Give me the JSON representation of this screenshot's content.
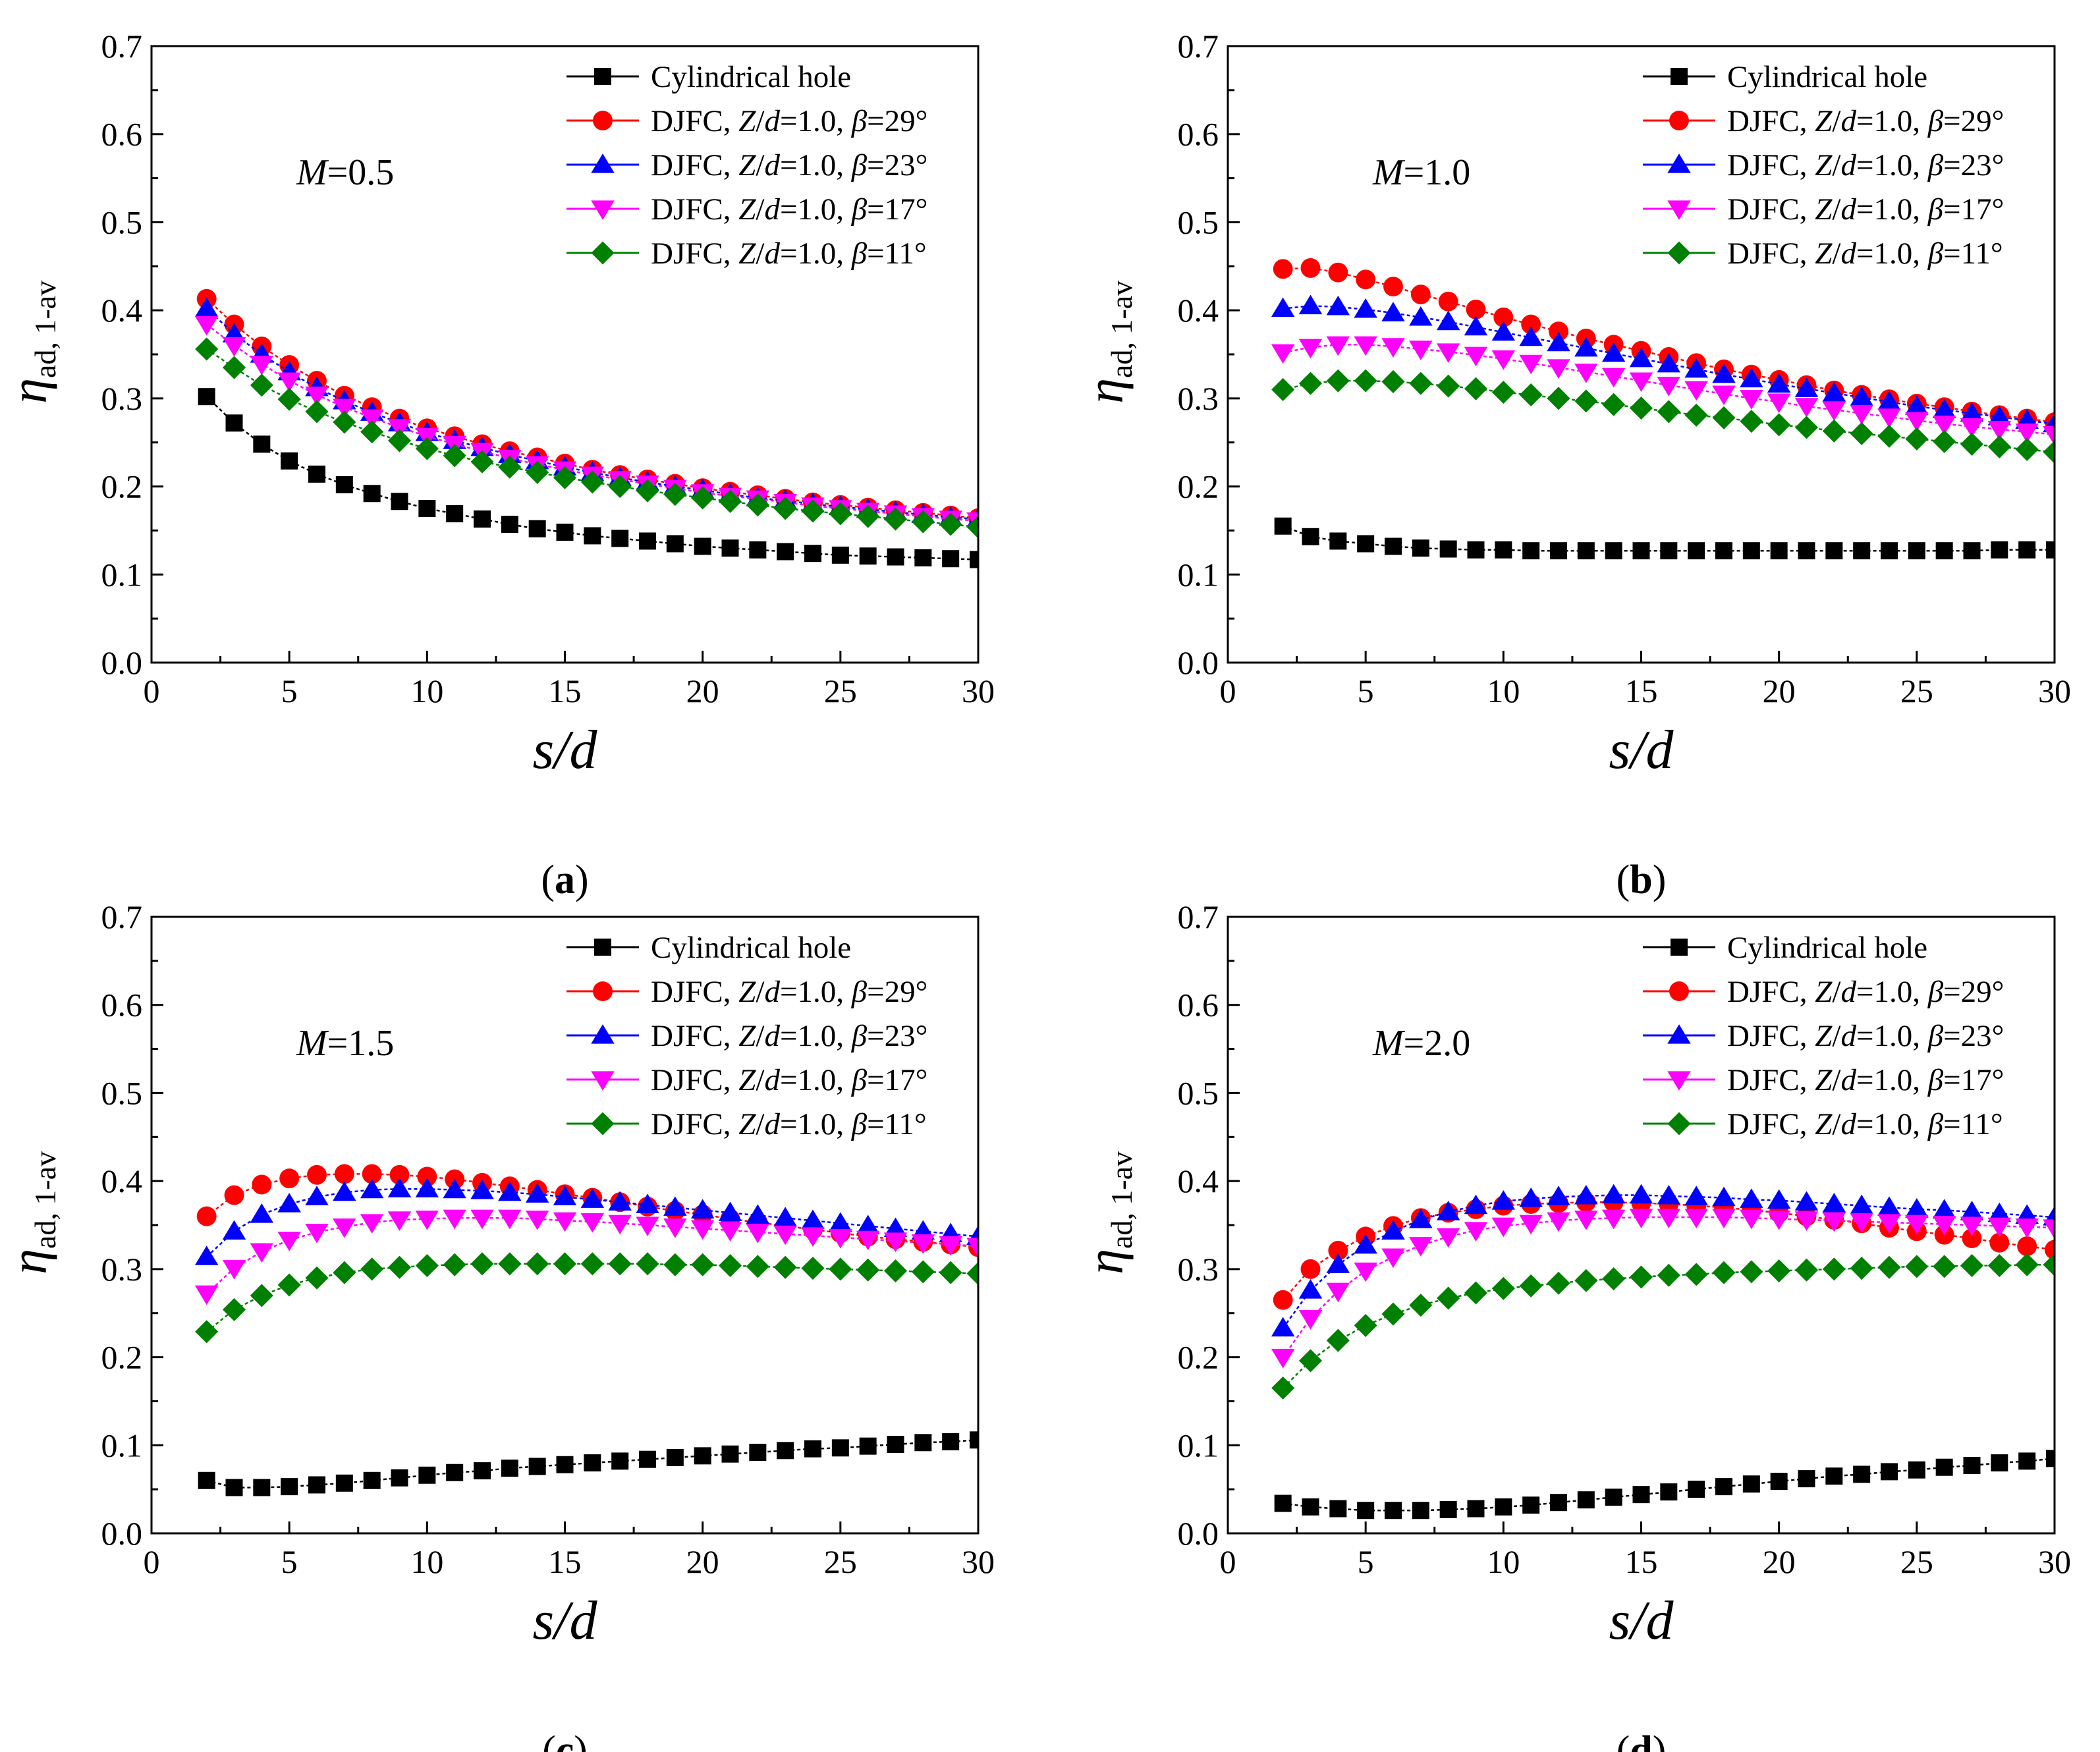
{
  "figure": {
    "legend_labels": [
      {
        "plain": "Cylindrical hole"
      },
      {
        "pre": "DJFC, ",
        "z": "Z",
        "slash": "/",
        "d": "d",
        "eq": "=1.0, ",
        "beta": "β",
        "val": "=29°"
      },
      {
        "pre": "DJFC, ",
        "z": "Z",
        "slash": "/",
        "d": "d",
        "eq": "=1.0, ",
        "beta": "β",
        "val": "=23°"
      },
      {
        "pre": "DJFC, ",
        "z": "Z",
        "slash": "/",
        "d": "d",
        "eq": "=1.0, ",
        "beta": "β",
        "val": "=17°"
      },
      {
        "pre": "DJFC, ",
        "z": "Z",
        "slash": "/",
        "d": "d",
        "eq": "=1.0, ",
        "beta": "β",
        "val": "=11°"
      }
    ],
    "ylabel": {
      "main": "η",
      "sub": "ad, 1-av"
    },
    "xlabel": "s/d",
    "x_ticks": [
      "0",
      "5",
      "10",
      "15",
      "20",
      "25",
      "30"
    ],
    "y_ticks": [
      "0.0",
      "0.1",
      "0.2",
      "0.3",
      "0.4",
      "0.5",
      "0.6",
      "0.7"
    ]
  },
  "colors": {
    "cylindrical": "#000000",
    "beta29": "#ff0000",
    "beta23": "#0000ff",
    "beta17": "#ff00ff",
    "beta11": "#008000",
    "axis": "#000000",
    "background": "#ffffff"
  },
  "chart_data": [
    {
      "type": "line",
      "panel_caption": "(a)",
      "caption_letter": "a",
      "annotation": {
        "var": "M",
        "value": "=0.5"
      },
      "xlim": [
        0,
        30
      ],
      "ylim": [
        0,
        0.7
      ],
      "xlabel": "s/d",
      "ylabel": "ηad, 1-av",
      "x": [
        2,
        3,
        4,
        5,
        6,
        7,
        8,
        9,
        10,
        11,
        12,
        13,
        14,
        15,
        16,
        17,
        18,
        19,
        20,
        21,
        22,
        23,
        24,
        25,
        26,
        27,
        28,
        29,
        30
      ],
      "series": [
        {
          "name": "Cylindrical hole",
          "marker": "square",
          "values": [
            0.302,
            0.272,
            0.248,
            0.229,
            0.214,
            0.202,
            0.192,
            0.183,
            0.175,
            0.169,
            0.163,
            0.157,
            0.152,
            0.148,
            0.144,
            0.141,
            0.138,
            0.135,
            0.132,
            0.13,
            0.128,
            0.126,
            0.124,
            0.122,
            0.121,
            0.12,
            0.119,
            0.118,
            0.117
          ]
        },
        {
          "name": "DJFC, Z/d=1.0, β=29°",
          "marker": "circle",
          "values": [
            0.413,
            0.384,
            0.359,
            0.338,
            0.32,
            0.303,
            0.29,
            0.277,
            0.266,
            0.257,
            0.248,
            0.24,
            0.233,
            0.226,
            0.219,
            0.213,
            0.208,
            0.203,
            0.198,
            0.194,
            0.19,
            0.186,
            0.182,
            0.179,
            0.176,
            0.173,
            0.17,
            0.167,
            0.164
          ]
        },
        {
          "name": "DJFC, Z/d=1.0, β=23°",
          "marker": "triangle-up",
          "values": [
            0.402,
            0.373,
            0.35,
            0.33,
            0.312,
            0.297,
            0.284,
            0.272,
            0.261,
            0.252,
            0.244,
            0.236,
            0.229,
            0.222,
            0.216,
            0.21,
            0.205,
            0.2,
            0.196,
            0.191,
            0.187,
            0.184,
            0.18,
            0.177,
            0.174,
            0.171,
            0.168,
            0.165,
            0.163
          ]
        },
        {
          "name": "DJFC, Z/d=1.0, β=17°",
          "marker": "triangle-down",
          "values": [
            0.384,
            0.36,
            0.339,
            0.32,
            0.304,
            0.29,
            0.278,
            0.267,
            0.257,
            0.248,
            0.24,
            0.232,
            0.225,
            0.219,
            0.213,
            0.208,
            0.203,
            0.198,
            0.193,
            0.189,
            0.186,
            0.182,
            0.178,
            0.175,
            0.172,
            0.169,
            0.166,
            0.163,
            0.161
          ]
        },
        {
          "name": "DJFC, Z/d=1.0, β=11°",
          "marker": "diamond",
          "values": [
            0.356,
            0.335,
            0.315,
            0.299,
            0.285,
            0.273,
            0.262,
            0.252,
            0.243,
            0.235,
            0.228,
            0.222,
            0.216,
            0.21,
            0.205,
            0.2,
            0.195,
            0.191,
            0.187,
            0.183,
            0.179,
            0.175,
            0.172,
            0.169,
            0.166,
            0.163,
            0.16,
            0.157,
            0.154
          ]
        }
      ]
    },
    {
      "type": "line",
      "panel_caption": "(b)",
      "caption_letter": "b",
      "annotation": {
        "var": "M",
        "value": "=1.0"
      },
      "xlim": [
        0,
        30
      ],
      "ylim": [
        0,
        0.7
      ],
      "xlabel": "s/d",
      "ylabel": "ηad, 1-av",
      "x": [
        2,
        3,
        4,
        5,
        6,
        7,
        8,
        9,
        10,
        11,
        12,
        13,
        14,
        15,
        16,
        17,
        18,
        19,
        20,
        21,
        22,
        23,
        24,
        25,
        26,
        27,
        28,
        29,
        30
      ],
      "series": [
        {
          "name": "Cylindrical hole",
          "marker": "square",
          "values": [
            0.155,
            0.143,
            0.138,
            0.135,
            0.132,
            0.13,
            0.129,
            0.128,
            0.128,
            0.127,
            0.127,
            0.127,
            0.127,
            0.127,
            0.127,
            0.127,
            0.127,
            0.127,
            0.127,
            0.127,
            0.127,
            0.127,
            0.127,
            0.127,
            0.127,
            0.127,
            0.128,
            0.128,
            0.128
          ]
        },
        {
          "name": "DJFC, Z/d=1.0, β=29°",
          "marker": "circle",
          "values": [
            0.447,
            0.448,
            0.443,
            0.435,
            0.427,
            0.418,
            0.41,
            0.401,
            0.392,
            0.384,
            0.376,
            0.368,
            0.361,
            0.354,
            0.347,
            0.34,
            0.333,
            0.327,
            0.321,
            0.315,
            0.309,
            0.304,
            0.299,
            0.294,
            0.29,
            0.285,
            0.281,
            0.277,
            0.273
          ]
        },
        {
          "name": "DJFC, Z/d=1.0, β=23°",
          "marker": "triangle-up",
          "values": [
            0.402,
            0.405,
            0.404,
            0.401,
            0.397,
            0.392,
            0.387,
            0.381,
            0.375,
            0.369,
            0.363,
            0.357,
            0.351,
            0.345,
            0.339,
            0.333,
            0.327,
            0.322,
            0.316,
            0.311,
            0.306,
            0.301,
            0.296,
            0.291,
            0.287,
            0.283,
            0.279,
            0.275,
            0.271
          ]
        },
        {
          "name": "DJFC, Z/d=1.0, β=17°",
          "marker": "triangle-down",
          "values": [
            0.352,
            0.358,
            0.361,
            0.361,
            0.359,
            0.356,
            0.353,
            0.349,
            0.345,
            0.34,
            0.335,
            0.33,
            0.325,
            0.32,
            0.315,
            0.31,
            0.305,
            0.3,
            0.296,
            0.291,
            0.287,
            0.283,
            0.279,
            0.275,
            0.271,
            0.268,
            0.265,
            0.262,
            0.259
          ]
        },
        {
          "name": "DJFC, Z/d=1.0, β=11°",
          "marker": "diamond",
          "values": [
            0.31,
            0.317,
            0.32,
            0.32,
            0.319,
            0.317,
            0.314,
            0.311,
            0.307,
            0.304,
            0.3,
            0.297,
            0.293,
            0.289,
            0.285,
            0.281,
            0.278,
            0.274,
            0.27,
            0.267,
            0.263,
            0.26,
            0.257,
            0.254,
            0.251,
            0.248,
            0.245,
            0.242,
            0.239
          ]
        }
      ]
    },
    {
      "type": "line",
      "panel_caption": "(c)",
      "caption_letter": "c",
      "annotation": {
        "var": "M",
        "value": "=1.5"
      },
      "xlim": [
        0,
        30
      ],
      "ylim": [
        0,
        0.7
      ],
      "xlabel": "s/d",
      "ylabel": "ηad, 1-av",
      "x": [
        2,
        3,
        4,
        5,
        6,
        7,
        8,
        9,
        10,
        11,
        12,
        13,
        14,
        15,
        16,
        17,
        18,
        19,
        20,
        21,
        22,
        23,
        24,
        25,
        26,
        27,
        28,
        29,
        30
      ],
      "series": [
        {
          "name": "Cylindrical hole",
          "marker": "square",
          "values": [
            0.06,
            0.052,
            0.052,
            0.053,
            0.055,
            0.057,
            0.06,
            0.063,
            0.066,
            0.069,
            0.071,
            0.074,
            0.076,
            0.078,
            0.08,
            0.082,
            0.084,
            0.086,
            0.088,
            0.09,
            0.092,
            0.094,
            0.096,
            0.097,
            0.099,
            0.101,
            0.103,
            0.104,
            0.106
          ]
        },
        {
          "name": "DJFC, Z/d=1.0, β=29°",
          "marker": "circle",
          "values": [
            0.36,
            0.384,
            0.396,
            0.403,
            0.407,
            0.408,
            0.408,
            0.407,
            0.405,
            0.402,
            0.398,
            0.394,
            0.39,
            0.385,
            0.381,
            0.376,
            0.371,
            0.366,
            0.362,
            0.357,
            0.353,
            0.349,
            0.345,
            0.341,
            0.337,
            0.334,
            0.331,
            0.328,
            0.325
          ]
        },
        {
          "name": "DJFC, Z/d=1.0, β=23°",
          "marker": "triangle-up",
          "values": [
            0.314,
            0.343,
            0.362,
            0.374,
            0.382,
            0.387,
            0.39,
            0.391,
            0.391,
            0.39,
            0.389,
            0.387,
            0.385,
            0.382,
            0.379,
            0.376,
            0.373,
            0.37,
            0.367,
            0.364,
            0.361,
            0.358,
            0.355,
            0.352,
            0.349,
            0.346,
            0.343,
            0.34,
            0.337
          ]
        },
        {
          "name": "DJFC, Z/d=1.0, β=17°",
          "marker": "triangle-down",
          "values": [
            0.272,
            0.301,
            0.32,
            0.333,
            0.342,
            0.348,
            0.353,
            0.356,
            0.357,
            0.358,
            0.358,
            0.358,
            0.357,
            0.355,
            0.354,
            0.352,
            0.35,
            0.348,
            0.346,
            0.344,
            0.342,
            0.34,
            0.338,
            0.336,
            0.334,
            0.332,
            0.33,
            0.328,
            0.326
          ]
        },
        {
          "name": "DJFC, Z/d=1.0, β=11°",
          "marker": "diamond",
          "values": [
            0.229,
            0.254,
            0.27,
            0.282,
            0.29,
            0.296,
            0.3,
            0.302,
            0.304,
            0.305,
            0.306,
            0.306,
            0.306,
            0.306,
            0.306,
            0.306,
            0.306,
            0.305,
            0.305,
            0.304,
            0.303,
            0.302,
            0.301,
            0.3,
            0.299,
            0.298,
            0.297,
            0.296,
            0.295
          ]
        }
      ]
    },
    {
      "type": "line",
      "panel_caption": "(d)",
      "caption_letter": "d",
      "annotation": {
        "var": "M",
        "value": "=2.0"
      },
      "xlim": [
        0,
        30
      ],
      "ylim": [
        0,
        0.7
      ],
      "xlabel": "s/d",
      "ylabel": "ηad, 1-av",
      "x": [
        2,
        3,
        4,
        5,
        6,
        7,
        8,
        9,
        10,
        11,
        12,
        13,
        14,
        15,
        16,
        17,
        18,
        19,
        20,
        21,
        22,
        23,
        24,
        25,
        26,
        27,
        28,
        29,
        30
      ],
      "series": [
        {
          "name": "Cylindrical hole",
          "marker": "square",
          "values": [
            0.034,
            0.03,
            0.028,
            0.026,
            0.026,
            0.026,
            0.027,
            0.028,
            0.03,
            0.032,
            0.035,
            0.038,
            0.041,
            0.044,
            0.047,
            0.05,
            0.053,
            0.056,
            0.059,
            0.062,
            0.065,
            0.067,
            0.07,
            0.072,
            0.075,
            0.077,
            0.08,
            0.082,
            0.085
          ]
        },
        {
          "name": "DJFC, Z/d=1.0, β=29°",
          "marker": "circle",
          "values": [
            0.265,
            0.3,
            0.321,
            0.337,
            0.349,
            0.358,
            0.364,
            0.368,
            0.372,
            0.374,
            0.375,
            0.376,
            0.376,
            0.375,
            0.374,
            0.372,
            0.37,
            0.367,
            0.364,
            0.36,
            0.356,
            0.352,
            0.347,
            0.343,
            0.339,
            0.335,
            0.33,
            0.326,
            0.322
          ]
        },
        {
          "name": "DJFC, Z/d=1.0, β=23°",
          "marker": "triangle-up",
          "values": [
            0.233,
            0.276,
            0.305,
            0.327,
            0.343,
            0.356,
            0.365,
            0.372,
            0.377,
            0.38,
            0.382,
            0.383,
            0.384,
            0.384,
            0.383,
            0.382,
            0.381,
            0.379,
            0.378,
            0.376,
            0.374,
            0.372,
            0.37,
            0.368,
            0.367,
            0.365,
            0.363,
            0.361,
            0.359
          ]
        },
        {
          "name": "DJFC, Z/d=1.0, β=17°",
          "marker": "triangle-down",
          "values": [
            0.2,
            0.244,
            0.275,
            0.298,
            0.314,
            0.327,
            0.337,
            0.344,
            0.349,
            0.352,
            0.355,
            0.357,
            0.358,
            0.359,
            0.359,
            0.359,
            0.359,
            0.358,
            0.357,
            0.356,
            0.355,
            0.354,
            0.353,
            0.352,
            0.351,
            0.35,
            0.349,
            0.348,
            0.347
          ]
        },
        {
          "name": "DJFC, Z/d=1.0, β=11°",
          "marker": "diamond",
          "values": [
            0.165,
            0.196,
            0.219,
            0.236,
            0.249,
            0.259,
            0.267,
            0.273,
            0.278,
            0.281,
            0.284,
            0.287,
            0.289,
            0.291,
            0.293,
            0.294,
            0.296,
            0.297,
            0.298,
            0.299,
            0.3,
            0.301,
            0.302,
            0.303,
            0.303,
            0.304,
            0.304,
            0.305,
            0.305
          ]
        }
      ]
    }
  ]
}
